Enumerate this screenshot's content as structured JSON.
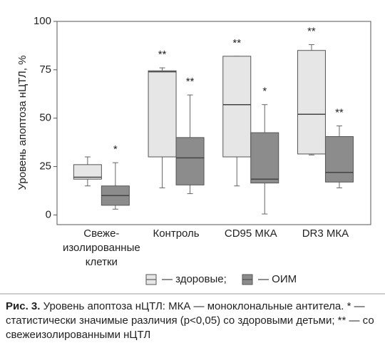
{
  "chart_data": {
    "type": "box",
    "ylabel": "Уровень апоптоза нЦТЛ, %",
    "categories": [
      "Свеже-\nизолированные\nклетки",
      "Контроль",
      "CD95 МКА",
      "DR3 МКА"
    ],
    "ylim": [
      -5,
      100
    ],
    "yticks": [
      0,
      25,
      50,
      75,
      100
    ],
    "grid": false,
    "series": [
      {
        "name": "— здоровые;",
        "color": "#e6e6e6",
        "values": [
          {
            "min": 15,
            "q1": 18.5,
            "median": 19.5,
            "q3": 26,
            "max": 30
          },
          {
            "min": 14,
            "q1": 30,
            "median": 74,
            "q3": 74.5,
            "max": 76
          },
          {
            "min": 15,
            "q1": 30,
            "median": 57,
            "q3": 82,
            "max": 82
          },
          {
            "min": 31,
            "q1": 31.5,
            "median": 52,
            "q3": 85,
            "max": 88
          }
        ],
        "annotations": [
          null,
          "**",
          "**",
          "**"
        ]
      },
      {
        "name": "— ОИМ",
        "color": "#8c8c8c",
        "values": [
          {
            "min": 3,
            "q1": 5,
            "median": 10,
            "q3": 15,
            "max": 27
          },
          {
            "min": 11,
            "q1": 15.5,
            "median": 29.5,
            "q3": 40,
            "max": 62
          },
          {
            "min": 0.5,
            "q1": 16.5,
            "median": 18.5,
            "q3": 42.5,
            "max": 57
          },
          {
            "min": 14,
            "q1": 17,
            "median": 22,
            "q3": 40.5,
            "max": 46
          }
        ],
        "annotations": [
          "*",
          "**",
          "*",
          "**"
        ]
      }
    ]
  },
  "caption": {
    "label": "Рис. 3.",
    "text": " Уровень апоптоза нЦТЛ: МКА — моноклональные антитела. * — статистически значимые различия  (p<0,05) со здоровыми детьми; ** — со свежеизолированными нЦТЛ"
  }
}
